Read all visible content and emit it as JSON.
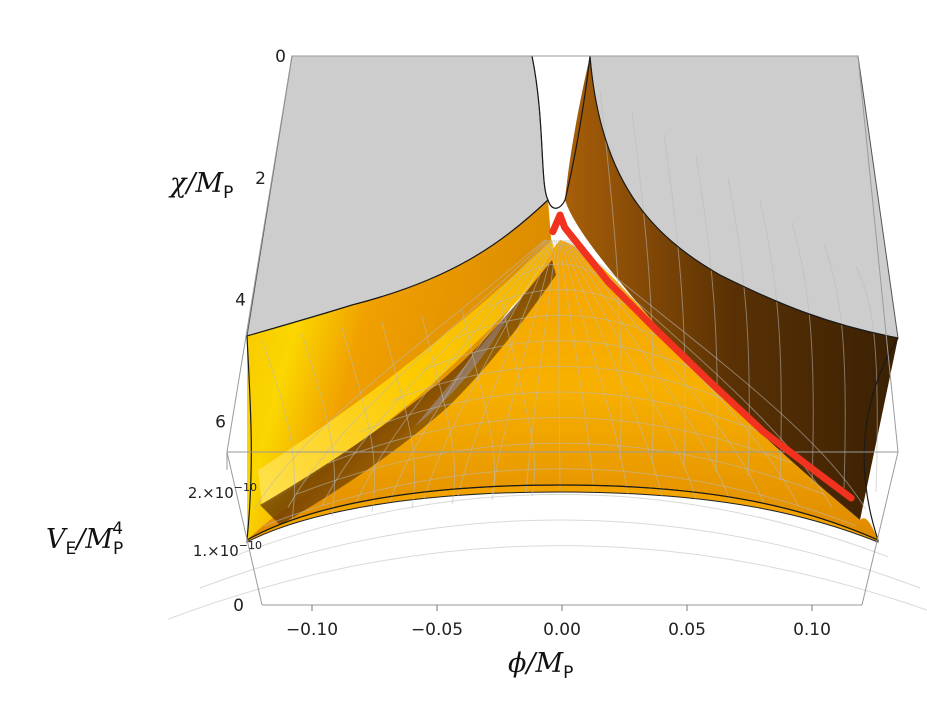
{
  "chart_data": {
    "type": "surface3d",
    "axes": {
      "x": {
        "label_main": "ϕ/M",
        "label_sub": "P",
        "range": [
          -0.12,
          0.12
        ],
        "ticks": [
          "−0.10",
          "−0.05",
          "0.00",
          "0.05",
          "0.10"
        ],
        "tick_values": [
          -0.1,
          -0.05,
          0.0,
          0.05,
          0.1
        ]
      },
      "y": {
        "label_main": "χ/M",
        "label_sub": "P",
        "range": [
          0,
          6.5
        ],
        "ticks": [
          "0",
          "2",
          "4",
          "6"
        ],
        "tick_values": [
          0,
          2,
          4,
          6
        ]
      },
      "z": {
        "label_main": "V",
        "label_sub1": "E",
        "label_mid": "/M",
        "label_sub2": "P",
        "label_sup": "4",
        "ticks": [
          "0",
          "1.×10",
          "2.×10"
        ],
        "tick_exponent": "−10",
        "tick_values": [
          0,
          1e-10,
          2e-10
        ]
      }
    },
    "surface_colors": {
      "low": "#fde600",
      "mid": "#f5a300",
      "high": "#8a4a05",
      "shadow": "#3e2203",
      "clip": "#cdcdcd"
    },
    "trajectory": {
      "color": "#f0321e",
      "points": [
        {
          "phi": -0.003,
          "chi": 3.4
        },
        {
          "phi": 0.0,
          "chi": 3.2
        },
        {
          "phi": 0.002,
          "chi": 3.35
        },
        {
          "phi": 0.02,
          "chi": 4.0
        },
        {
          "phi": 0.04,
          "chi": 4.6
        },
        {
          "phi": 0.06,
          "chi": 5.2
        },
        {
          "phi": 0.08,
          "chi": 5.8
        },
        {
          "phi": 0.1,
          "chi": 6.3
        },
        {
          "phi": 0.112,
          "chi": 6.6
        }
      ]
    },
    "grid": true
  }
}
